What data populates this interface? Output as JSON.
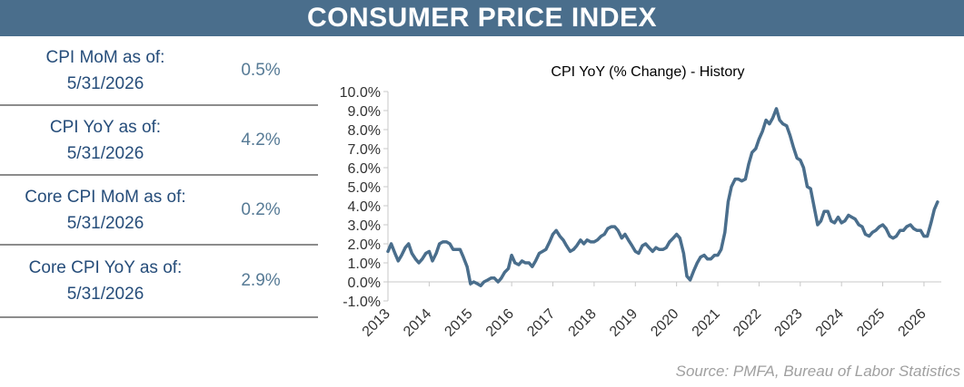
{
  "header": {
    "title": "CONSUMER PRICE INDEX"
  },
  "stats": [
    {
      "label_line1": "CPI MoM as of:",
      "label_line2": "5/31/2026",
      "value": "0.5%"
    },
    {
      "label_line1": "CPI YoY as of:",
      "label_line2": "5/31/2026",
      "value": "4.2%"
    },
    {
      "label_line1": "Core CPI MoM as of:",
      "label_line2": "5/31/2026",
      "value": "0.2%"
    },
    {
      "label_line1": "Core CPI YoY as of:",
      "label_line2": "5/31/2026",
      "value": "2.9%"
    }
  ],
  "source": "Source:  PMFA, Bureau of Labor Statistics",
  "colors": {
    "banner": "#4a6e8c",
    "line": "#4a6e8c",
    "label_text": "#264d7a",
    "value_text": "#567a95",
    "divider": "#8c8c8c"
  },
  "chart_data": {
    "type": "line",
    "title": "CPI YoY (% Change) - History",
    "xlabel": "",
    "ylabel": "",
    "ylim": [
      -1.0,
      10.0
    ],
    "yticks": [
      "10.0%",
      "9.0%",
      "8.0%",
      "7.0%",
      "6.0%",
      "5.0%",
      "4.0%",
      "3.0%",
      "2.0%",
      "1.0%",
      "0.0%",
      "-1.0%"
    ],
    "xticks": [
      "2013",
      "2014",
      "2015",
      "2016",
      "2017",
      "2018",
      "2019",
      "2020",
      "2021",
      "2022",
      "2023",
      "2024",
      "2025",
      "2026"
    ],
    "xlim": [
      2013.0,
      2026.42
    ],
    "grid": false,
    "legend": "none",
    "series": [
      {
        "points": [
          [
            2013.0,
            1.6
          ],
          [
            2013.08,
            2.0
          ],
          [
            2013.17,
            1.5
          ],
          [
            2013.25,
            1.1
          ],
          [
            2013.33,
            1.4
          ],
          [
            2013.42,
            1.8
          ],
          [
            2013.5,
            2.0
          ],
          [
            2013.58,
            1.5
          ],
          [
            2013.67,
            1.2
          ],
          [
            2013.75,
            1.0
          ],
          [
            2013.83,
            1.2
          ],
          [
            2013.92,
            1.5
          ],
          [
            2014.0,
            1.6
          ],
          [
            2014.08,
            1.1
          ],
          [
            2014.17,
            1.5
          ],
          [
            2014.25,
            2.0
          ],
          [
            2014.33,
            2.1
          ],
          [
            2014.42,
            2.1
          ],
          [
            2014.5,
            2.0
          ],
          [
            2014.58,
            1.7
          ],
          [
            2014.67,
            1.7
          ],
          [
            2014.75,
            1.7
          ],
          [
            2014.83,
            1.3
          ],
          [
            2014.92,
            0.8
          ],
          [
            2015.0,
            -0.1
          ],
          [
            2015.08,
            0.0
          ],
          [
            2015.17,
            -0.1
          ],
          [
            2015.25,
            -0.2
          ],
          [
            2015.33,
            0.0
          ],
          [
            2015.42,
            0.1
          ],
          [
            2015.5,
            0.2
          ],
          [
            2015.58,
            0.2
          ],
          [
            2015.67,
            0.0
          ],
          [
            2015.75,
            0.2
          ],
          [
            2015.83,
            0.5
          ],
          [
            2015.92,
            0.7
          ],
          [
            2016.0,
            1.4
          ],
          [
            2016.08,
            1.0
          ],
          [
            2016.17,
            0.9
          ],
          [
            2016.25,
            1.1
          ],
          [
            2016.33,
            1.0
          ],
          [
            2016.42,
            1.0
          ],
          [
            2016.5,
            0.8
          ],
          [
            2016.58,
            1.1
          ],
          [
            2016.67,
            1.5
          ],
          [
            2016.75,
            1.6
          ],
          [
            2016.83,
            1.7
          ],
          [
            2016.92,
            2.1
          ],
          [
            2017.0,
            2.5
          ],
          [
            2017.08,
            2.7
          ],
          [
            2017.17,
            2.4
          ],
          [
            2017.25,
            2.2
          ],
          [
            2017.33,
            1.9
          ],
          [
            2017.42,
            1.6
          ],
          [
            2017.5,
            1.7
          ],
          [
            2017.58,
            1.9
          ],
          [
            2017.67,
            2.2
          ],
          [
            2017.75,
            2.0
          ],
          [
            2017.83,
            2.2
          ],
          [
            2017.92,
            2.1
          ],
          [
            2018.0,
            2.1
          ],
          [
            2018.08,
            2.2
          ],
          [
            2018.17,
            2.4
          ],
          [
            2018.25,
            2.5
          ],
          [
            2018.33,
            2.8
          ],
          [
            2018.42,
            2.9
          ],
          [
            2018.5,
            2.9
          ],
          [
            2018.58,
            2.7
          ],
          [
            2018.67,
            2.3
          ],
          [
            2018.75,
            2.5
          ],
          [
            2018.83,
            2.2
          ],
          [
            2018.92,
            1.9
          ],
          [
            2019.0,
            1.6
          ],
          [
            2019.08,
            1.5
          ],
          [
            2019.17,
            1.9
          ],
          [
            2019.25,
            2.0
          ],
          [
            2019.33,
            1.8
          ],
          [
            2019.42,
            1.6
          ],
          [
            2019.5,
            1.8
          ],
          [
            2019.58,
            1.7
          ],
          [
            2019.67,
            1.7
          ],
          [
            2019.75,
            1.8
          ],
          [
            2019.83,
            2.1
          ],
          [
            2019.92,
            2.3
          ],
          [
            2020.0,
            2.5
          ],
          [
            2020.08,
            2.3
          ],
          [
            2020.17,
            1.5
          ],
          [
            2020.25,
            0.3
          ],
          [
            2020.33,
            0.1
          ],
          [
            2020.42,
            0.6
          ],
          [
            2020.5,
            1.0
          ],
          [
            2020.58,
            1.3
          ],
          [
            2020.67,
            1.4
          ],
          [
            2020.75,
            1.2
          ],
          [
            2020.83,
            1.2
          ],
          [
            2020.92,
            1.4
          ],
          [
            2021.0,
            1.4
          ],
          [
            2021.08,
            1.7
          ],
          [
            2021.17,
            2.6
          ],
          [
            2021.25,
            4.2
          ],
          [
            2021.33,
            5.0
          ],
          [
            2021.42,
            5.4
          ],
          [
            2021.5,
            5.4
          ],
          [
            2021.58,
            5.3
          ],
          [
            2021.67,
            5.4
          ],
          [
            2021.75,
            6.2
          ],
          [
            2021.83,
            6.8
          ],
          [
            2021.92,
            7.0
          ],
          [
            2022.0,
            7.5
          ],
          [
            2022.08,
            7.9
          ],
          [
            2022.17,
            8.5
          ],
          [
            2022.25,
            8.3
          ],
          [
            2022.33,
            8.6
          ],
          [
            2022.42,
            9.1
          ],
          [
            2022.5,
            8.5
          ],
          [
            2022.58,
            8.3
          ],
          [
            2022.67,
            8.2
          ],
          [
            2022.75,
            7.7
          ],
          [
            2022.83,
            7.1
          ],
          [
            2022.92,
            6.5
          ],
          [
            2023.0,
            6.4
          ],
          [
            2023.08,
            6.0
          ],
          [
            2023.17,
            5.0
          ],
          [
            2023.25,
            4.9
          ],
          [
            2023.33,
            4.0
          ],
          [
            2023.42,
            3.0
          ],
          [
            2023.5,
            3.2
          ],
          [
            2023.58,
            3.7
          ],
          [
            2023.67,
            3.7
          ],
          [
            2023.75,
            3.2
          ],
          [
            2023.83,
            3.1
          ],
          [
            2023.92,
            3.4
          ],
          [
            2024.0,
            3.1
          ],
          [
            2024.08,
            3.2
          ],
          [
            2024.17,
            3.5
          ],
          [
            2024.25,
            3.4
          ],
          [
            2024.33,
            3.3
          ],
          [
            2024.42,
            3.0
          ],
          [
            2024.5,
            2.9
          ],
          [
            2024.58,
            2.5
          ],
          [
            2024.67,
            2.4
          ],
          [
            2024.75,
            2.6
          ],
          [
            2024.83,
            2.7
          ],
          [
            2024.92,
            2.9
          ],
          [
            2025.0,
            3.0
          ],
          [
            2025.08,
            2.8
          ],
          [
            2025.17,
            2.4
          ],
          [
            2025.25,
            2.3
          ],
          [
            2025.33,
            2.4
          ],
          [
            2025.42,
            2.7
          ],
          [
            2025.5,
            2.7
          ],
          [
            2025.58,
            2.9
          ],
          [
            2025.67,
            3.0
          ],
          [
            2025.75,
            2.8
          ],
          [
            2025.83,
            2.7
          ],
          [
            2025.92,
            2.7
          ],
          [
            2026.0,
            2.4
          ],
          [
            2026.08,
            2.4
          ],
          [
            2026.17,
            3.1
          ],
          [
            2026.25,
            3.8
          ],
          [
            2026.33,
            4.2
          ]
        ]
      }
    ]
  }
}
